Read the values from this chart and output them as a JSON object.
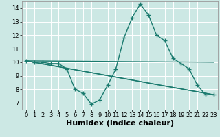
{
  "xlabel": "Humidex (Indice chaleur)",
  "bg_color": "#cce8e4",
  "grid_color": "#ffffff",
  "line_color": "#1a7a6e",
  "marker": "+",
  "markersize": 4,
  "linewidth": 1.0,
  "xlim": [
    -0.5,
    23.5
  ],
  "ylim": [
    6.5,
    14.5
  ],
  "xticks": [
    0,
    1,
    2,
    3,
    4,
    5,
    6,
    7,
    8,
    9,
    10,
    11,
    12,
    13,
    14,
    15,
    16,
    17,
    18,
    19,
    20,
    21,
    22,
    23
  ],
  "yticks": [
    7,
    8,
    9,
    10,
    11,
    12,
    13,
    14
  ],
  "series": [
    {
      "x": [
        0,
        1,
        2,
        3,
        4,
        5,
        6,
        7,
        8,
        9,
        10,
        11,
        12,
        13,
        14,
        15,
        16,
        17,
        18,
        19,
        20,
        21,
        22,
        23
      ],
      "y": [
        10.1,
        10.0,
        10.0,
        9.9,
        9.9,
        9.5,
        8.0,
        7.7,
        6.9,
        7.2,
        8.3,
        9.5,
        11.8,
        13.3,
        14.3,
        13.5,
        12.0,
        11.6,
        10.3,
        9.9,
        9.5,
        8.3,
        7.6,
        7.6
      ]
    },
    {
      "x": [
        0,
        23
      ],
      "y": [
        10.1,
        10.0
      ]
    },
    {
      "x": [
        0,
        23
      ],
      "y": [
        10.1,
        7.6
      ]
    },
    {
      "x": [
        0,
        23
      ],
      "y": [
        10.1,
        7.6
      ]
    }
  ],
  "xlabel_fontsize": 8,
  "tick_fontsize": 6
}
